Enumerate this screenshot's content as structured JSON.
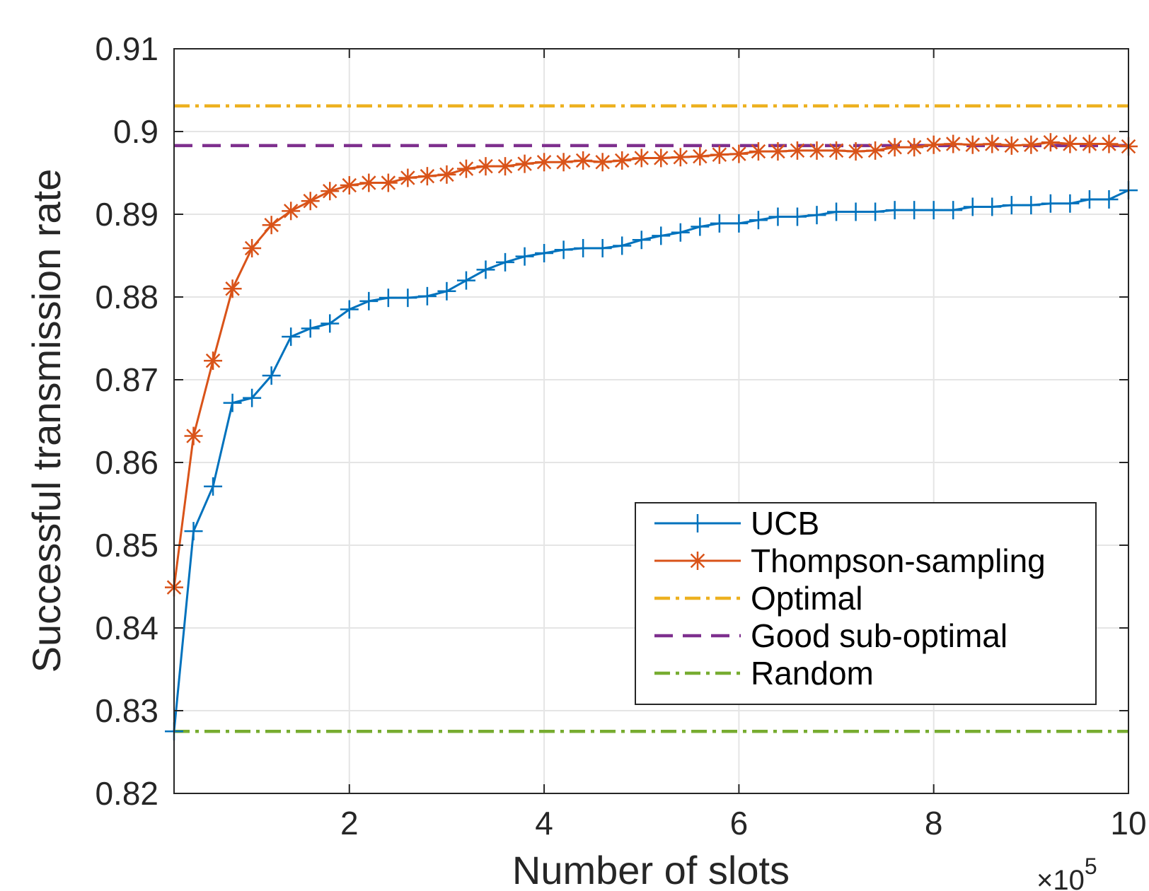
{
  "chart_data": {
    "type": "line",
    "title": "",
    "xlabel": "Number of slots",
    "ylabel": "Successful transmission rate",
    "x_multiplier_label": "×10",
    "x_multiplier_exponent": "5",
    "xlim": [
      0.2,
      10
    ],
    "ylim": [
      0.82,
      0.91
    ],
    "xticks": [
      2,
      4,
      6,
      8,
      10
    ],
    "xtick_labels": [
      "2",
      "4",
      "6",
      "8",
      "10"
    ],
    "yticks": [
      0.82,
      0.83,
      0.84,
      0.85,
      0.86,
      0.87,
      0.88,
      0.89,
      0.9,
      0.91
    ],
    "ytick_labels": [
      "0.82",
      "0.83",
      "0.84",
      "0.85",
      "0.86",
      "0.87",
      "0.88",
      "0.89",
      "0.9",
      "0.91"
    ],
    "grid": true,
    "legend_position": "bottom-right",
    "series": [
      {
        "name": "UCB",
        "color": "#0072BD",
        "style": "solid",
        "marker": "plus",
        "x": [
          0.2,
          0.4,
          0.6,
          0.8,
          1.0,
          1.2,
          1.4,
          1.6,
          1.8,
          2.0,
          2.2,
          2.4,
          2.6,
          2.8,
          3.0,
          3.2,
          3.4,
          3.6,
          3.8,
          4.0,
          4.2,
          4.4,
          4.6,
          4.8,
          5.0,
          5.2,
          5.4,
          5.6,
          5.8,
          6.0,
          6.2,
          6.4,
          6.6,
          6.8,
          7.0,
          7.2,
          7.4,
          7.6,
          7.8,
          8.0,
          8.2,
          8.4,
          8.6,
          8.8,
          9.0,
          9.2,
          9.4,
          9.6,
          9.8,
          10.0
        ],
        "y": [
          0.8275,
          0.8517,
          0.8571,
          0.8672,
          0.8678,
          0.8705,
          0.8752,
          0.8762,
          0.8768,
          0.8785,
          0.8795,
          0.8799,
          0.8799,
          0.8801,
          0.8807,
          0.882,
          0.8833,
          0.8842,
          0.8849,
          0.8853,
          0.8857,
          0.8859,
          0.8859,
          0.8862,
          0.8869,
          0.8874,
          0.8878,
          0.8885,
          0.8889,
          0.8889,
          0.8893,
          0.8897,
          0.8897,
          0.8899,
          0.8903,
          0.8903,
          0.8903,
          0.8905,
          0.8905,
          0.8905,
          0.8905,
          0.8909,
          0.8909,
          0.8911,
          0.8911,
          0.8913,
          0.8913,
          0.8918,
          0.8918,
          0.8929
        ]
      },
      {
        "name": "Thompson-sampling",
        "color": "#D95319",
        "style": "solid",
        "marker": "asterisk",
        "x": [
          0.2,
          0.4,
          0.6,
          0.8,
          1.0,
          1.2,
          1.4,
          1.6,
          1.8,
          2.0,
          2.2,
          2.4,
          2.6,
          2.8,
          3.0,
          3.2,
          3.4,
          3.6,
          3.8,
          4.0,
          4.2,
          4.4,
          4.6,
          4.8,
          5.0,
          5.2,
          5.4,
          5.6,
          5.8,
          6.0,
          6.2,
          6.4,
          6.6,
          6.8,
          7.0,
          7.2,
          7.4,
          7.6,
          7.8,
          8.0,
          8.2,
          8.4,
          8.6,
          8.8,
          9.0,
          9.2,
          9.4,
          9.6,
          9.8,
          10.0
        ],
        "y": [
          0.8449,
          0.8632,
          0.8723,
          0.881,
          0.8859,
          0.8887,
          0.8904,
          0.8916,
          0.8928,
          0.8935,
          0.8938,
          0.8938,
          0.8944,
          0.8946,
          0.8948,
          0.8955,
          0.8958,
          0.8958,
          0.8961,
          0.8963,
          0.8963,
          0.8965,
          0.8963,
          0.8965,
          0.8968,
          0.8968,
          0.8969,
          0.897,
          0.8972,
          0.8973,
          0.8976,
          0.8976,
          0.8977,
          0.8977,
          0.8977,
          0.8976,
          0.8977,
          0.8981,
          0.8981,
          0.8984,
          0.8985,
          0.8984,
          0.8985,
          0.8983,
          0.8984,
          0.8987,
          0.8985,
          0.8985,
          0.8985,
          0.8982
        ]
      },
      {
        "name": "Optimal",
        "color": "#EDB120",
        "style": "dashdot",
        "marker": "none",
        "x": [
          0.2,
          10.0
        ],
        "y": [
          0.9031,
          0.9031
        ]
      },
      {
        "name": "Good sub-optimal",
        "color": "#7E2F8E",
        "style": "dashed",
        "marker": "none",
        "x": [
          0.2,
          10.0
        ],
        "y": [
          0.8983,
          0.8983
        ]
      },
      {
        "name": "Random",
        "color": "#77AC30",
        "style": "dashdot",
        "marker": "none",
        "x": [
          0.2,
          10.0
        ],
        "y": [
          0.8275,
          0.8275
        ]
      }
    ]
  }
}
